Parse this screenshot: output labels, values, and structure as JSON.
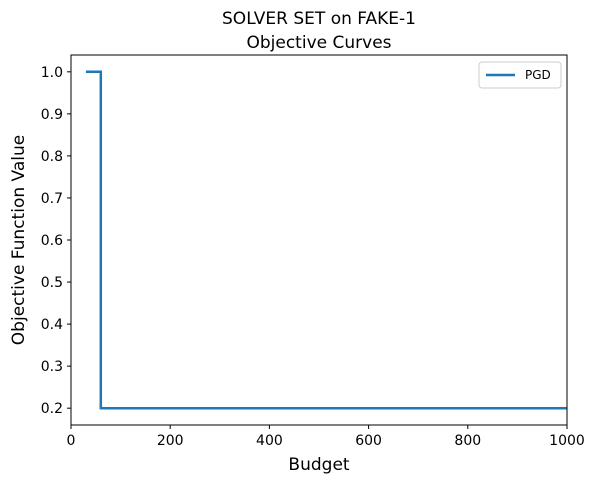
{
  "chart_data": {
    "type": "line",
    "title": [
      "SOLVER SET on FAKE-1",
      "Objective Curves"
    ],
    "xlabel": "Budget",
    "ylabel": "Objective Function Value",
    "xlim": [
      0,
      1000
    ],
    "ylim": [
      0.16,
      1.04
    ],
    "xticks": [
      0,
      200,
      400,
      600,
      800,
      1000
    ],
    "yticks": [
      0.2,
      0.3,
      0.4,
      0.5,
      0.6,
      0.7,
      0.8,
      0.9,
      1.0
    ],
    "ytick_labels": [
      "0.2",
      "0.3",
      "0.4",
      "0.5",
      "0.6",
      "0.7",
      "0.8",
      "0.9",
      "1.0"
    ],
    "grid": false,
    "legend_position": "top-right",
    "series": [
      {
        "name": "PGD",
        "color": "#1f77b4",
        "step": "post",
        "x": [
          30,
          60,
          60,
          1000
        ],
        "y": [
          1.0,
          1.0,
          0.2,
          0.2
        ]
      }
    ]
  }
}
